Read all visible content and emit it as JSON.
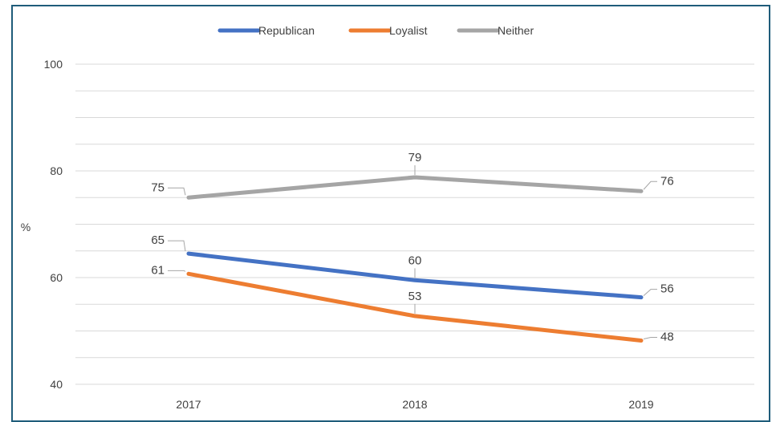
{
  "chart_data": {
    "type": "line",
    "categories": [
      "2017",
      "2018",
      "2019"
    ],
    "ylabel": "%",
    "ylim": [
      40,
      100
    ],
    "yticks": [
      40,
      60,
      80,
      100
    ],
    "grid": true,
    "legend_position": "top",
    "series": [
      {
        "name": "Republican",
        "color": "#4472c4",
        "values": [
          65,
          60,
          56
        ],
        "display": [
          64.5,
          59.5,
          56.3
        ]
      },
      {
        "name": "Loyalist",
        "color": "#ed7d31",
        "values": [
          61,
          53,
          48
        ],
        "display": [
          60.7,
          52.8,
          48.2
        ]
      },
      {
        "name": "Neither",
        "color": "#a5a5a5",
        "values": [
          75,
          79,
          76
        ],
        "display": [
          75.0,
          78.8,
          76.2
        ]
      }
    ]
  }
}
